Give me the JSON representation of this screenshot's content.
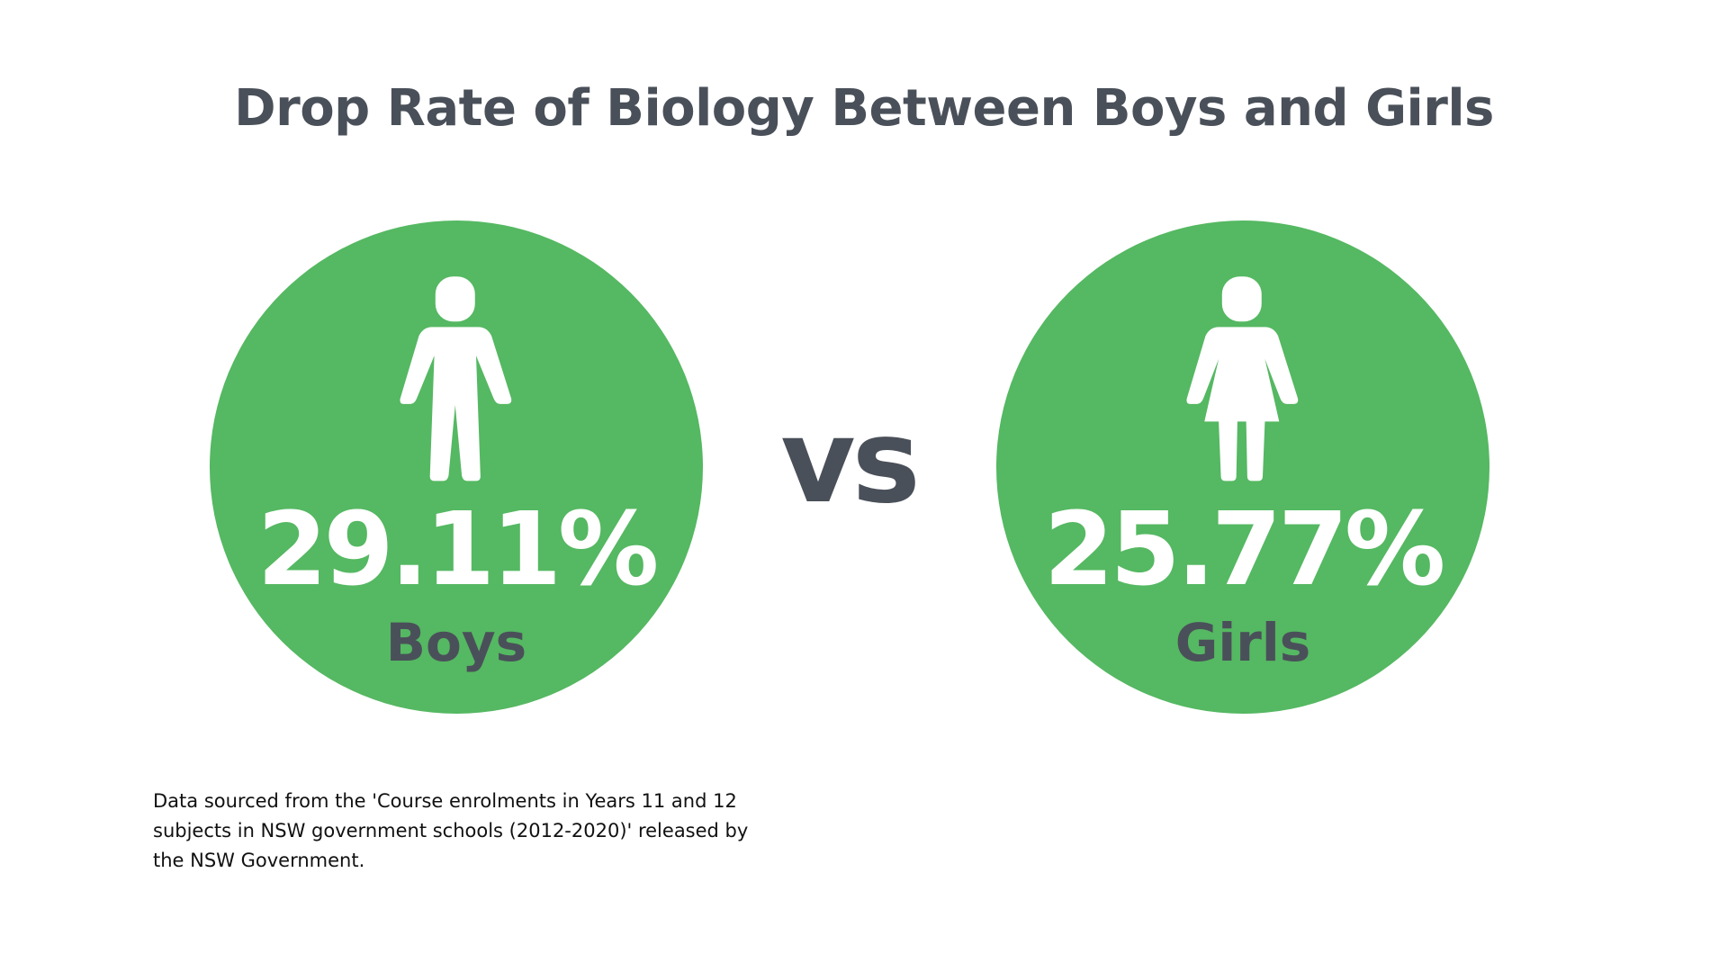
{
  "title": "Drop Rate of Biology Between Boys and Girls",
  "colors": {
    "circle": "#55b862",
    "dark_text": "#4a5059",
    "white": "#ffffff"
  },
  "groups": [
    {
      "icon": "boy-icon",
      "value": "29.11%",
      "label": "Boys"
    },
    {
      "icon": "girl-icon",
      "value": "25.77%",
      "label": "Girls"
    }
  ],
  "vs_label": "vs",
  "source_note": "Data sourced from the 'Course enrolments in Years 11 and 12 subjects in NSW government schools (2012-2020)' released by the NSW Government."
}
